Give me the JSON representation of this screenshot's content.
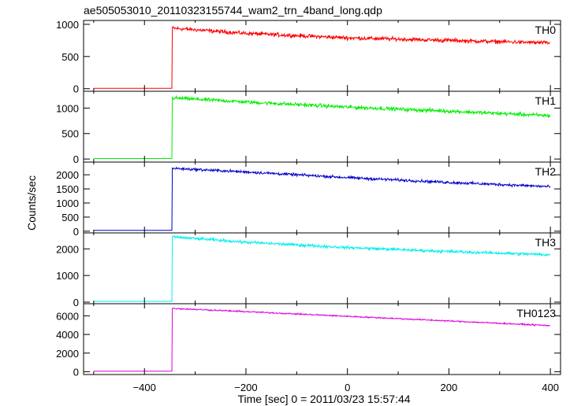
{
  "chart_data": {
    "type": "line",
    "title": "ae505053010_20110323155744_wam2_trn_4band_long.qdp",
    "xlabel": "Time [sec] 0 = 2011/03/23 15:57:44",
    "ylabel": "Counts/sec",
    "xlim": [
      -520,
      420
    ],
    "x_ticks": [
      -400,
      -200,
      0,
      200,
      400
    ],
    "x_tick_labels": [
      "−400",
      "−200",
      "0",
      "200",
      "400"
    ],
    "grid": false,
    "trigger_time": -345,
    "x_start": -500,
    "x_end": 400,
    "panels": [
      {
        "name": "TH0",
        "color": "#ff0000",
        "ylim": [
          -40,
          1060
        ],
        "y_ticks": [
          0,
          500,
          1000
        ],
        "baseline": 5,
        "segment_x": [
          -345,
          -200,
          0,
          200,
          400
        ],
        "segment_y": [
          940,
          860,
          790,
          750,
          710
        ],
        "noise": 25
      },
      {
        "name": "TH1",
        "color": "#00ee00",
        "ylim": [
          -60,
          1330
        ],
        "y_ticks": [
          0,
          500,
          1000
        ],
        "baseline": 10,
        "segment_x": [
          -345,
          -200,
          0,
          200,
          400
        ],
        "segment_y": [
          1200,
          1120,
          1020,
          940,
          850
        ],
        "noise": 30
      },
      {
        "name": "TH2",
        "color": "#0000cc",
        "ylim": [
          -60,
          2450
        ],
        "y_ticks": [
          0,
          500,
          1000,
          1500,
          2000
        ],
        "y_tick_labels": [
          "0",
          "500",
          "1000",
          "1500",
          "2000"
        ],
        "baseline": 30,
        "segment_x": [
          -345,
          -200,
          0,
          200,
          400
        ],
        "segment_y": [
          2230,
          2100,
          1900,
          1730,
          1580
        ],
        "noise": 40
      },
      {
        "name": "TH3",
        "color": "#00eeee",
        "ylim": [
          -60,
          2600
        ],
        "y_ticks": [
          0,
          1000,
          2000
        ],
        "baseline": 30,
        "segment_x": [
          -345,
          -200,
          0,
          200,
          400
        ],
        "segment_y": [
          2450,
          2250,
          2050,
          1900,
          1780
        ],
        "noise": 45
      },
      {
        "name": "TH0123",
        "color": "#dd00dd",
        "ylim": [
          -300,
          7300
        ],
        "y_ticks": [
          0,
          2000,
          4000,
          6000
        ],
        "baseline": 60,
        "segment_x": [
          -345,
          -200,
          0,
          200,
          400
        ],
        "segment_y": [
          6800,
          6450,
          5950,
          5450,
          4950
        ],
        "noise": 60
      }
    ]
  }
}
